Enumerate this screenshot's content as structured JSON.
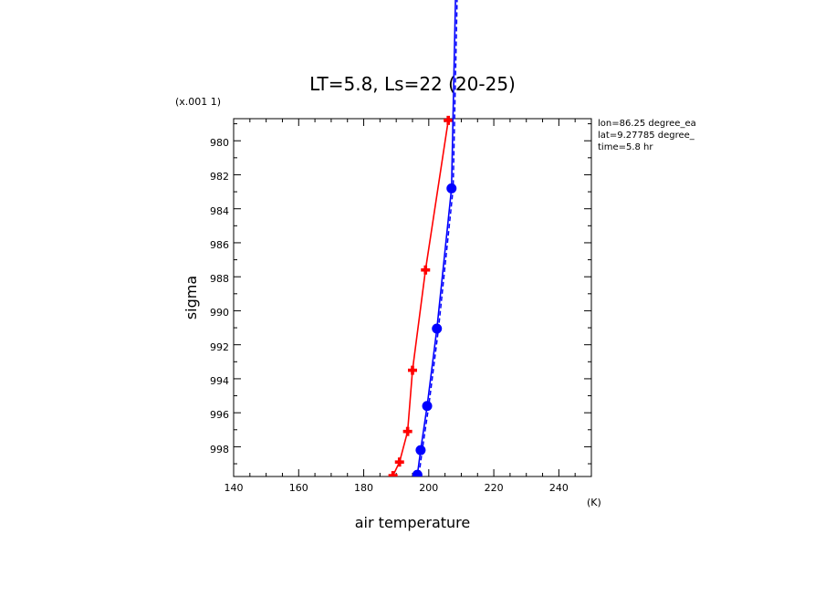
{
  "chart_data": {
    "type": "line",
    "title": "LT=5.8, Ls=22 (20-25)",
    "xlabel": "air temperature",
    "xunit": "(K)",
    "ylabel": "sigma",
    "yunit": "(x.001 1)",
    "xlim": [
      140,
      250
    ],
    "ylim": [
      978.7,
      999.75
    ],
    "y_inverted": true,
    "x_ticks": [
      "140",
      "160",
      "180",
      "200",
      "220",
      "240"
    ],
    "y_ticks": [
      "980",
      "982",
      "984",
      "986",
      "988",
      "990",
      "992",
      "994",
      "996",
      "998"
    ],
    "grid": false,
    "legend": "none",
    "info_lines": [
      "lon=86.25 degree_ea",
      "lat=9.27785 degree_",
      "time=5.8 hr"
    ],
    "series": [
      {
        "color": "#ff0000",
        "marker": "plus",
        "points": [
          {
            "x": 189.0,
            "y": 999.7
          },
          {
            "x": 191.0,
            "y": 998.9
          },
          {
            "x": 193.5,
            "y": 997.1
          },
          {
            "x": 195.0,
            "y": 993.5
          },
          {
            "x": 199.0,
            "y": 987.6
          },
          {
            "x": 206.0,
            "y": 978.8
          }
        ]
      },
      {
        "color": "#0000ff",
        "marker": "circle",
        "points": [
          {
            "x": 196.5,
            "y": 999.65
          },
          {
            "x": 197.5,
            "y": 998.2
          },
          {
            "x": 199.5,
            "y": 995.6
          },
          {
            "x": 202.5,
            "y": 991.05
          },
          {
            "x": 207.0,
            "y": 982.8
          },
          {
            "x": 209.5,
            "y": 960.0
          }
        ]
      },
      {
        "color": "#0000ff",
        "marker": "none",
        "dashed": true,
        "points": [
          {
            "x": 197.0,
            "y": 999.65
          },
          {
            "x": 198.0,
            "y": 998.2
          },
          {
            "x": 200.0,
            "y": 995.6
          },
          {
            "x": 203.0,
            "y": 991.05
          },
          {
            "x": 207.5,
            "y": 982.8
          },
          {
            "x": 210.0,
            "y": 960.0
          }
        ]
      }
    ]
  }
}
